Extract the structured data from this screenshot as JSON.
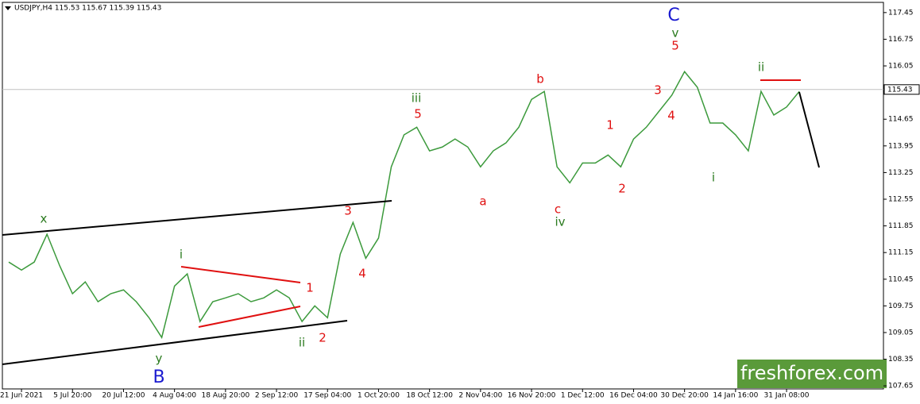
{
  "chart_data": {
    "type": "line",
    "title": "USDJPY,H4  115.53 115.67 115.39 115.43",
    "categories": [
      null,
      "21 Jun 2021",
      null,
      null,
      null,
      "5 Jul 20:00",
      null,
      null,
      null,
      "20 Jul 12:00",
      null,
      null,
      null,
      "4 Aug 04:00",
      null,
      null,
      null,
      "18 Aug 20:00",
      null,
      null,
      null,
      "2 Sep 12:00",
      null,
      null,
      null,
      "17 Sep 04:00",
      null,
      null,
      null,
      "1 Oct 20:00",
      null,
      null,
      null,
      "18 Oct 12:00",
      null,
      null,
      null,
      "2 Nov 04:00",
      null,
      null,
      null,
      "16 Nov 20:00",
      null,
      null,
      null,
      "1 Dec 12:00",
      null,
      null,
      null,
      "16 Dec 04:00",
      null,
      null,
      null,
      "30 Dec 20:00",
      null,
      null,
      null,
      "14 Jan 16:00",
      null,
      null,
      null,
      "31 Jan 08:00",
      null
    ],
    "series": [
      {
        "name": "USDJPY",
        "color": "#3c9a3c",
        "values": [
          110.9,
          110.69,
          110.9,
          111.63,
          110.8,
          110.07,
          110.38,
          109.86,
          110.07,
          110.17,
          109.86,
          109.44,
          108.92,
          110.27,
          110.59,
          109.34,
          109.86,
          109.96,
          110.07,
          109.86,
          109.96,
          110.17,
          109.96,
          109.34,
          109.75,
          109.44,
          111.11,
          111.94,
          111.0,
          111.53,
          113.4,
          114.24,
          114.44,
          113.82,
          113.92,
          114.13,
          113.92,
          113.4,
          113.82,
          114.03,
          114.44,
          115.17,
          115.38,
          113.4,
          112.98,
          113.5,
          113.5,
          113.71,
          113.4,
          114.13,
          114.44,
          114.86,
          115.28,
          115.9,
          115.49,
          114.55,
          114.55,
          114.24,
          113.82,
          115.38,
          114.76,
          114.97,
          115.38
        ]
      }
    ],
    "ylim": [
      107.57,
      117.78
    ],
    "yticks": [
      107.65,
      108.35,
      109.05,
      109.75,
      110.45,
      111.15,
      111.85,
      112.55,
      113.25,
      113.95,
      114.65,
      116.05,
      116.75,
      117.45
    ],
    "last_price": 115.43,
    "last_price_color": "#c0c0c0",
    "annotations": [
      {
        "text": "x",
        "color": "#2a7a1e"
      },
      {
        "text": "y",
        "color": "#2a7a1e"
      },
      {
        "text": "B",
        "color": "#1a1ad0"
      },
      {
        "text": "i",
        "color": "#2a7a1e"
      },
      {
        "text": "1",
        "color": "#e01010"
      },
      {
        "text": "ii",
        "color": "#2a7a1e"
      },
      {
        "text": "2",
        "color": "#e01010"
      },
      {
        "text": "3",
        "color": "#e01010"
      },
      {
        "text": "4",
        "color": "#e01010"
      },
      {
        "text": "iii",
        "color": "#2a7a1e"
      },
      {
        "text": "5",
        "color": "#e01010"
      },
      {
        "text": "a",
        "color": "#e01010"
      },
      {
        "text": "b",
        "color": "#e01010"
      },
      {
        "text": "c",
        "color": "#e01010"
      },
      {
        "text": "iv",
        "color": "#2a7a1e"
      },
      {
        "text": "1",
        "color": "#e01010"
      },
      {
        "text": "2",
        "color": "#e01010"
      },
      {
        "text": "3",
        "color": "#e01010"
      },
      {
        "text": "4",
        "color": "#e01010"
      },
      {
        "text": "5",
        "color": "#e01010"
      },
      {
        "text": "v",
        "color": "#2a7a1e"
      },
      {
        "text": "C",
        "color": "#1a1ad0"
      },
      {
        "text": "i",
        "color": "#2a7a1e"
      },
      {
        "text": "ii",
        "color": "#2a7a1e"
      }
    ],
    "watermark": "freshforex.com"
  }
}
